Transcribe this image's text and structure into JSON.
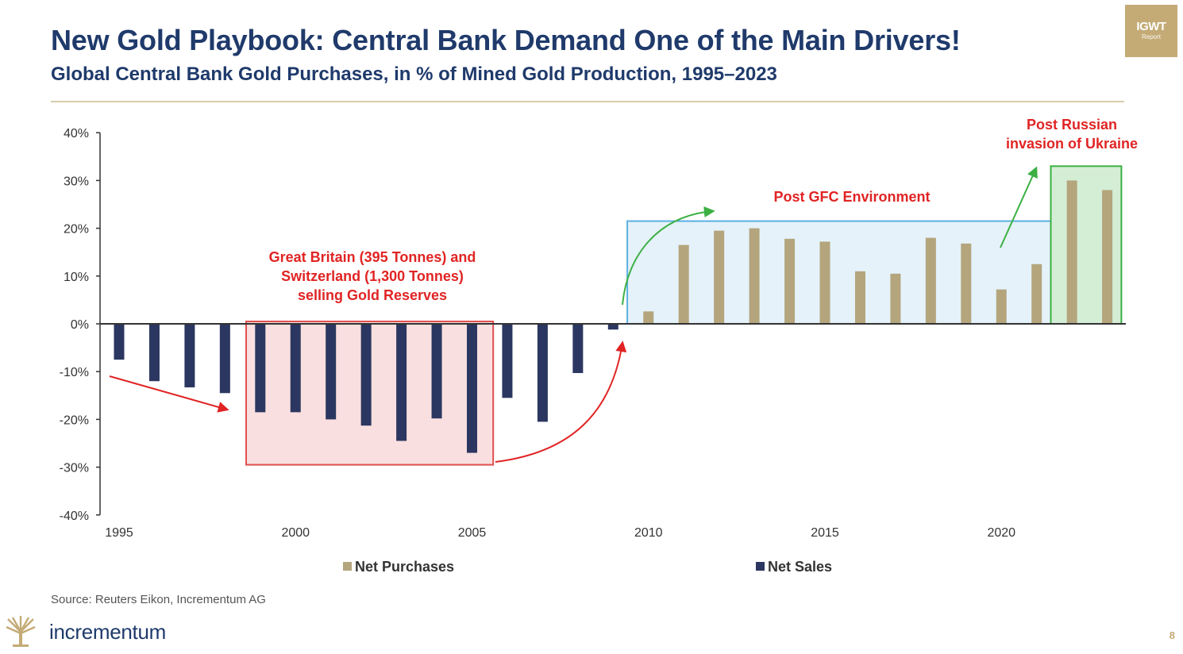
{
  "title": "New Gold Playbook: Central Bank Demand One of the Main Drivers!",
  "subtitle": "Global Central Bank Gold Purchases, in % of Mined Gold Production, 1995–2023",
  "logo": {
    "big": "IGWT",
    "small": "Report"
  },
  "source": "Source: Reuters Eikon, Incrementum AG",
  "brand": "incrementum",
  "page_number": "8",
  "colors": {
    "net_purchases": "#b4a57d",
    "net_sales": "#2b3760",
    "annotation": "#e02424",
    "gfc_box": "#5bb0e0",
    "ukraine_box": "#3cb043",
    "britain_box": "#e05050"
  },
  "chart_data": {
    "type": "bar",
    "title": "",
    "xlabel": "",
    "ylabel": "",
    "ylim": [
      -40,
      40
    ],
    "y_ticks": [
      "40%",
      "30%",
      "20%",
      "10%",
      "0%",
      "-10%",
      "-20%",
      "-30%",
      "-40%"
    ],
    "y_tick_values": [
      40,
      30,
      20,
      10,
      0,
      -10,
      -20,
      -30,
      -40
    ],
    "x_ticks": [
      "1995",
      "2000",
      "2005",
      "2010",
      "2015",
      "2020"
    ],
    "x_tick_values": [
      1995,
      2000,
      2005,
      2010,
      2015,
      2020
    ],
    "x": [
      1995,
      1996,
      1997,
      1998,
      1999,
      2000,
      2001,
      2002,
      2003,
      2004,
      2005,
      2006,
      2007,
      2008,
      2009,
      2010,
      2011,
      2012,
      2013,
      2014,
      2015,
      2016,
      2017,
      2018,
      2019,
      2020,
      2021,
      2022,
      2023
    ],
    "values": [
      -7.5,
      -12,
      -13.3,
      -14.5,
      -18.5,
      -18.5,
      -20,
      -21.3,
      -24.5,
      -19.8,
      -27,
      -15.5,
      -20.5,
      -10.3,
      -1.2,
      2.6,
      16.5,
      19.5,
      20,
      17.8,
      17.2,
      11,
      10.5,
      18,
      16.8,
      7.2,
      12.5,
      30,
      28
    ],
    "series": [
      {
        "name": "Net Purchases",
        "color": "#b4a57d"
      },
      {
        "name": "Net Sales",
        "color": "#2b3760"
      }
    ],
    "legend_position": "bottom",
    "grid": false,
    "annotations": [
      {
        "id": "britain",
        "lines": [
          "Great Britain (395 Tonnes) and",
          "Switzerland (1,300 Tonnes)",
          "selling Gold Reserves"
        ],
        "box_x": [
          1998.6,
          2005.6
        ],
        "box_y": [
          -29.5,
          0.5
        ]
      },
      {
        "id": "gfc",
        "lines": [
          "Post GFC Environment"
        ],
        "box_x": [
          2009.4,
          2021.4
        ],
        "box_y": [
          0,
          21.5
        ]
      },
      {
        "id": "ukraine",
        "lines": [
          "Post Russian",
          "invasion of Ukraine"
        ],
        "box_x": [
          2021.4,
          2023.4
        ],
        "box_y": [
          0,
          33
        ]
      }
    ]
  }
}
